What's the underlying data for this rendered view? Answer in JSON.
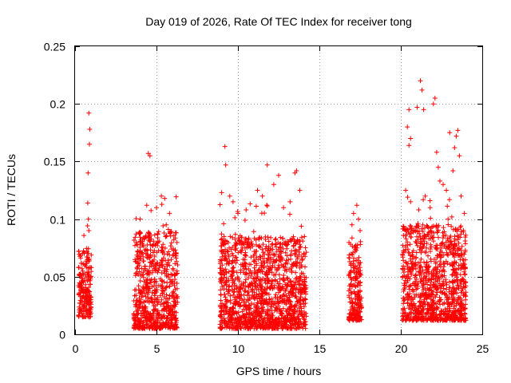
{
  "chart_data": {
    "type": "scatter",
    "title": "Day 019 of 2026, Rate Of TEC Index for receiver tong",
    "xlabel": "GPS time / hours",
    "ylabel": "ROTI / TECUs",
    "xlim": [
      0,
      25
    ],
    "ylim": [
      0,
      0.25
    ],
    "xticks": [
      0,
      5,
      10,
      15,
      20,
      25
    ],
    "yticks": [
      0,
      0.05,
      0.1,
      0.15,
      0.2,
      0.25
    ],
    "xtick_labels": [
      "0",
      "5",
      "10",
      "15",
      "20",
      "25"
    ],
    "ytick_labels": [
      "0",
      "0.05",
      "0.1",
      "0.15",
      "0.2",
      "0.25"
    ],
    "grid": true,
    "marker": "+",
    "series": [
      {
        "name": "ROTI",
        "color": "#ff0000",
        "clusters": [
          {
            "x_range": [
              0.2,
              1.0
            ],
            "y_base": [
              0.015,
              0.075
            ],
            "outliers": [
              [
                0.85,
                0.192
              ],
              [
                0.9,
                0.178
              ],
              [
                0.88,
                0.165
              ],
              [
                0.8,
                0.14
              ],
              [
                0.78,
                0.114
              ],
              [
                0.82,
                0.1
              ],
              [
                0.85,
                0.09
              ]
            ]
          },
          {
            "x_range": [
              3.6,
              6.3
            ],
            "y_base": [
              0.005,
              0.09
            ],
            "outliers": [
              [
                4.5,
                0.157
              ],
              [
                4.6,
                0.155
              ],
              [
                4.4,
                0.112
              ],
              [
                5.3,
                0.12
              ],
              [
                5.5,
                0.118
              ],
              [
                5.0,
                0.11
              ],
              [
                5.8,
                0.105
              ],
              [
                4.0,
                0.1
              ],
              [
                5.6,
                0.095
              ]
            ]
          },
          {
            "x_range": [
              8.9,
              14.2
            ],
            "y_base": [
              0.005,
              0.085
            ],
            "outliers": [
              [
                9.2,
                0.163
              ],
              [
                9.25,
                0.147
              ],
              [
                11.8,
                0.147
              ],
              [
                12.5,
                0.138
              ],
              [
                13.5,
                0.14
              ],
              [
                13.6,
                0.142
              ],
              [
                12.2,
                0.13
              ],
              [
                9.0,
                0.123
              ],
              [
                9.5,
                0.12
              ],
              [
                11.2,
                0.125
              ],
              [
                13.8,
                0.125
              ],
              [
                10.0,
                0.105
              ],
              [
                9.7,
                0.115
              ],
              [
                12.8,
                0.11
              ],
              [
                10.5,
                0.108
              ],
              [
                11.5,
                0.12
              ],
              [
                13.2,
                0.115
              ]
            ]
          },
          {
            "x_range": [
              16.8,
              17.6
            ],
            "y_base": [
              0.012,
              0.08
            ],
            "outliers": [
              [
                17.3,
                0.112
              ],
              [
                17.1,
                0.105
              ],
              [
                17.4,
                0.1
              ],
              [
                17.0,
                0.095
              ],
              [
                17.5,
                0.09
              ]
            ]
          },
          {
            "x_range": [
              20.1,
              24.0
            ],
            "y_base": [
              0.012,
              0.095
            ],
            "outliers": [
              [
                21.2,
                0.22
              ],
              [
                21.3,
                0.212
              ],
              [
                22.1,
                0.205
              ],
              [
                22.0,
                0.2
              ],
              [
                21.0,
                0.197
              ],
              [
                21.4,
                0.195
              ],
              [
                20.5,
                0.195
              ],
              [
                20.4,
                0.18
              ],
              [
                20.6,
                0.17
              ],
              [
                20.5,
                0.164
              ],
              [
                23.5,
                0.177
              ],
              [
                23.0,
                0.175
              ],
              [
                23.4,
                0.172
              ],
              [
                22.2,
                0.158
              ],
              [
                23.3,
                0.162
              ],
              [
                23.6,
                0.155
              ],
              [
                22.3,
                0.145
              ],
              [
                23.2,
                0.142
              ],
              [
                22.6,
                0.13
              ],
              [
                22.4,
                0.133
              ],
              [
                20.3,
                0.125
              ],
              [
                21.5,
                0.12
              ],
              [
                22.8,
                0.125
              ],
              [
                23.7,
                0.12
              ],
              [
                20.6,
                0.115
              ],
              [
                21.8,
                0.11
              ],
              [
                23.9,
                0.105
              ],
              [
                22.9,
                0.1
              ],
              [
                21.1,
                0.108
              ]
            ]
          }
        ]
      }
    ]
  }
}
